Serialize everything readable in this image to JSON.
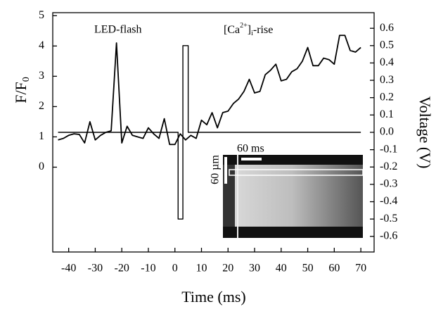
{
  "chart_data": {
    "type": "line",
    "x_label": "Time (ms)",
    "y_label": {
      "main": "F/F",
      "sub": "0"
    },
    "y2_label": "Voltage (V)",
    "annotations": [
      {
        "text": "LED-flash"
      },
      {
        "base": "[Ca",
        "sup": "2+",
        "close": "]",
        "sub": "i",
        "rest": "-rise"
      }
    ],
    "inset": {
      "time_bar": "60 ms",
      "space_bar": "60 µm"
    },
    "xlim": [
      -46,
      75
    ],
    "xticks": [
      -40,
      -30,
      -20,
      -10,
      0,
      10,
      20,
      30,
      40,
      50,
      60,
      70
    ],
    "ylim": [
      -2.8,
      5.1
    ],
    "yticks": [
      0,
      1,
      2,
      3,
      4,
      5
    ],
    "y2lim": [
      -0.69,
      0.69
    ],
    "y2ticks": [
      0.6,
      0.5,
      0.4,
      0.3,
      0.2,
      0.1,
      {
        "value": 0,
        "label": "0.0"
      },
      -0.1,
      -0.2,
      -0.3,
      -0.4,
      -0.5,
      -0.6
    ],
    "series": [
      {
        "color": "#000000",
        "x": [
          -44,
          -42,
          -40,
          -38,
          -36,
          -34,
          -32,
          -30,
          -28,
          -26,
          -24,
          -22,
          -20,
          -18,
          -16,
          -14,
          -12,
          -10,
          -8,
          -6,
          -4,
          -2,
          0,
          2,
          4,
          6,
          8,
          10,
          12,
          14,
          16,
          18,
          20,
          22,
          24,
          26,
          28,
          30,
          32,
          34,
          36,
          38,
          40,
          42,
          44,
          46,
          48,
          50,
          52,
          54,
          56,
          58,
          60,
          62,
          64,
          66,
          68,
          70
        ],
        "values": [
          0.9,
          0.95,
          1.05,
          1.1,
          1.08,
          0.8,
          1.5,
          0.9,
          1.05,
          1.15,
          1.2,
          4.1,
          0.8,
          1.35,
          1.05,
          1.0,
          0.95,
          1.3,
          1.1,
          0.95,
          1.6,
          0.75,
          0.75,
          1.1,
          0.9,
          1.05,
          0.95,
          1.55,
          1.4,
          1.8,
          1.3,
          1.8,
          1.85,
          2.1,
          2.25,
          2.5,
          2.9,
          2.45,
          2.5,
          3.05,
          3.2,
          3.4,
          2.85,
          2.9,
          3.15,
          3.25,
          3.5,
          3.95,
          3.35,
          3.35,
          3.6,
          3.55,
          3.4,
          4.35,
          4.35,
          3.85,
          3.8,
          3.95
        ]
      },
      {
        "color": "#000000",
        "axis": "y2",
        "x": [
          -44,
          1.2,
          1.2,
          3,
          3,
          5,
          5,
          70
        ],
        "values": [
          0,
          0,
          -0.5,
          -0.5,
          0.5,
          0.5,
          0,
          0
        ]
      }
    ]
  }
}
